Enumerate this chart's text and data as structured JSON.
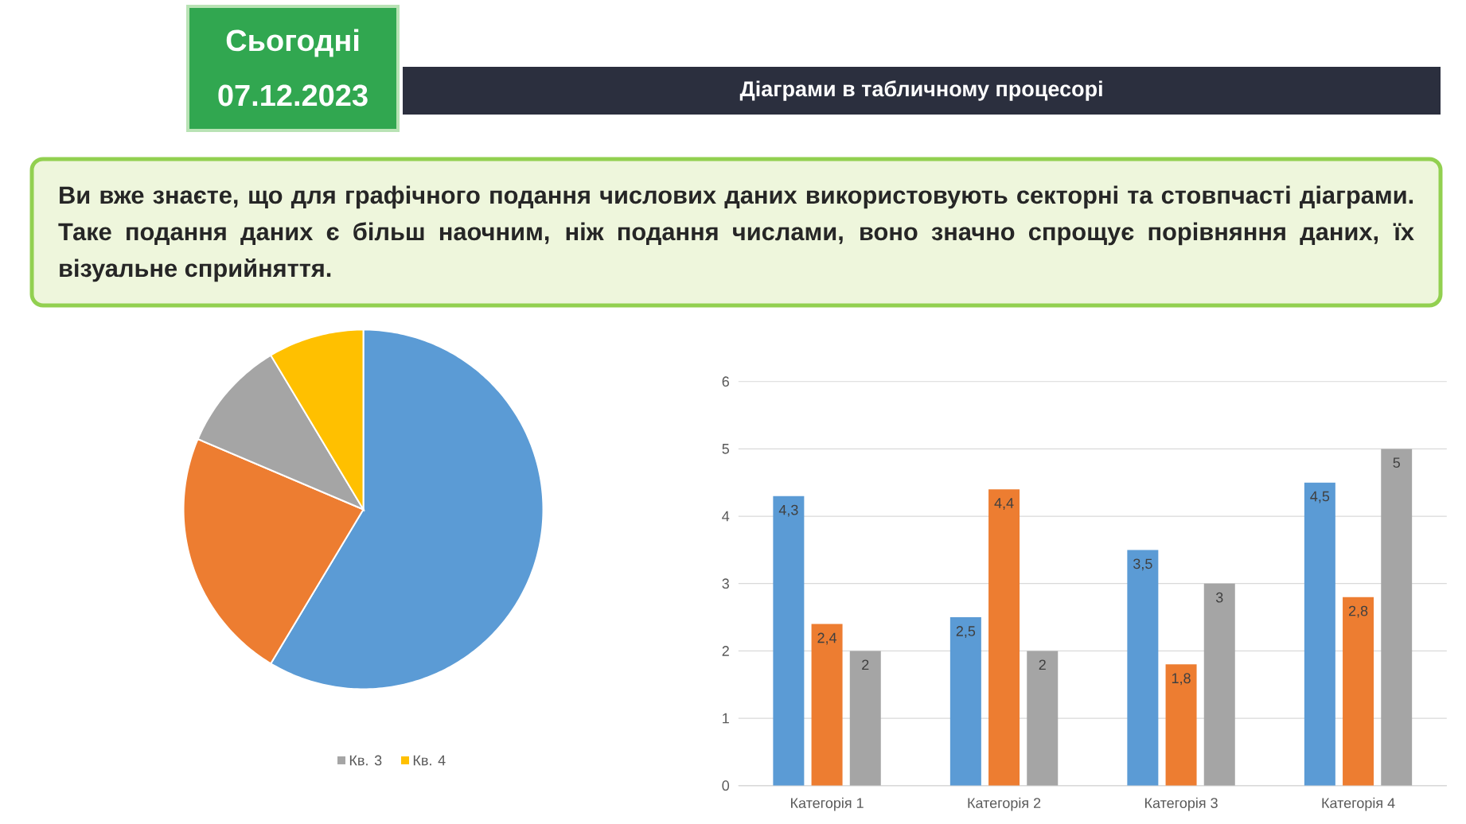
{
  "chart_data": [
    {
      "type": "pie",
      "title": "Діаграми в табличному процесорі",
      "subtitle": "Ви вже знаєте, що для графічного подання числових даних використовують секторні та стовпчасті діаграми. Таке подання даних є більш наочним, ніж подання числами, воно значно спрощує порівняння даних, їх візуальне сприйняття.",
      "annotations": [
        "Сьогодні",
        "07.12.2023"
      ],
      "categories": [
        null,
        null,
        "Кв. 3",
        "Кв. 4"
      ],
      "values": [
        58.6,
        22.8,
        10,
        8.6
      ],
      "colors": [
        "#5b9bd5",
        "#ed7d31",
        "#a5a5a5",
        "#ffc000"
      ],
      "legend": "bottom"
    },
    {
      "type": "bar",
      "categories": [
        "Категорія 1",
        "Категорія 2",
        "Категорія 3",
        "Категорія 4"
      ],
      "series": [
        {
          "color": "#5b9bd5",
          "values": [
            4.3,
            2.5,
            3.5,
            4.5
          ],
          "value_labels": [
            "4,3",
            "2,5",
            "3,5",
            "4,5"
          ]
        },
        {
          "color": "#ed7d31",
          "values": [
            2.4,
            4.4,
            1.8,
            2.8
          ],
          "value_labels": [
            "2,4",
            "4,4",
            "1,8",
            "2,8"
          ]
        },
        {
          "color": "#a5a5a5",
          "values": [
            2,
            2,
            3,
            5
          ],
          "value_labels": [
            "2",
            "2",
            "3",
            "5"
          ]
        }
      ],
      "ylim": [
        0,
        6
      ],
      "yticks": [
        0,
        1,
        2,
        3,
        4,
        5,
        6
      ],
      "grid": "y"
    }
  ]
}
